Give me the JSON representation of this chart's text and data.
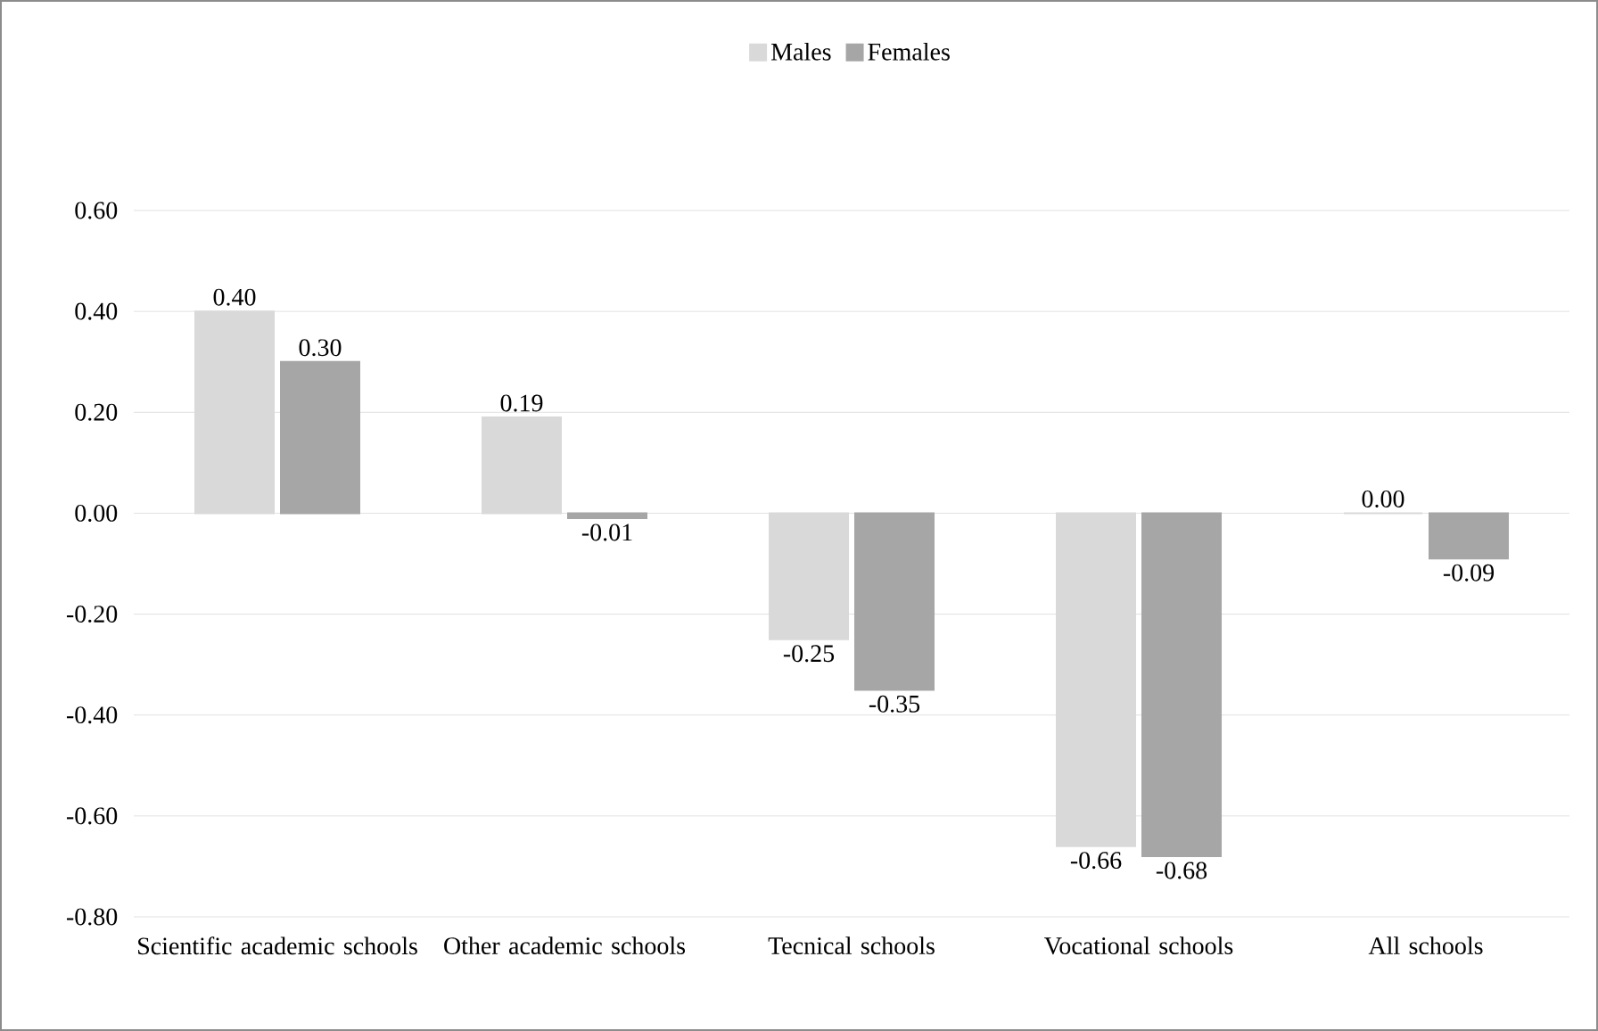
{
  "chart_data": {
    "type": "bar",
    "categories": [
      "Scientific academic schools",
      "Other academic schools",
      "Tecnical schools",
      "Vocational schools",
      "All schools"
    ],
    "series": [
      {
        "name": "Males",
        "color": "#d9d9d9",
        "values": [
          0.4,
          0.19,
          -0.25,
          -0.66,
          0.0
        ],
        "value_labels": [
          "0.40",
          "0.19",
          "-0.25",
          "-0.66",
          "0.00"
        ]
      },
      {
        "name": "Females",
        "color": "#a6a6a6",
        "values": [
          0.3,
          -0.01,
          -0.35,
          -0.68,
          -0.09
        ],
        "value_labels": [
          "0.30",
          "-0.01",
          "-0.35",
          "-0.68",
          "-0.09"
        ]
      }
    ],
    "ylim": [
      -0.8,
      0.6
    ],
    "yticks": [
      {
        "value": -0.8,
        "label": "-0.80"
      },
      {
        "value": -0.6,
        "label": "-0.60"
      },
      {
        "value": -0.4,
        "label": "-0.40"
      },
      {
        "value": -0.2,
        "label": "-0.20"
      },
      {
        "value": 0,
        "label": "0.00"
      },
      {
        "value": 0.2,
        "label": "0.20"
      },
      {
        "value": 0.4,
        "label": "0.40"
      },
      {
        "value": 0.6,
        "label": "0.60"
      }
    ],
    "grid": "y",
    "legend": "top"
  }
}
